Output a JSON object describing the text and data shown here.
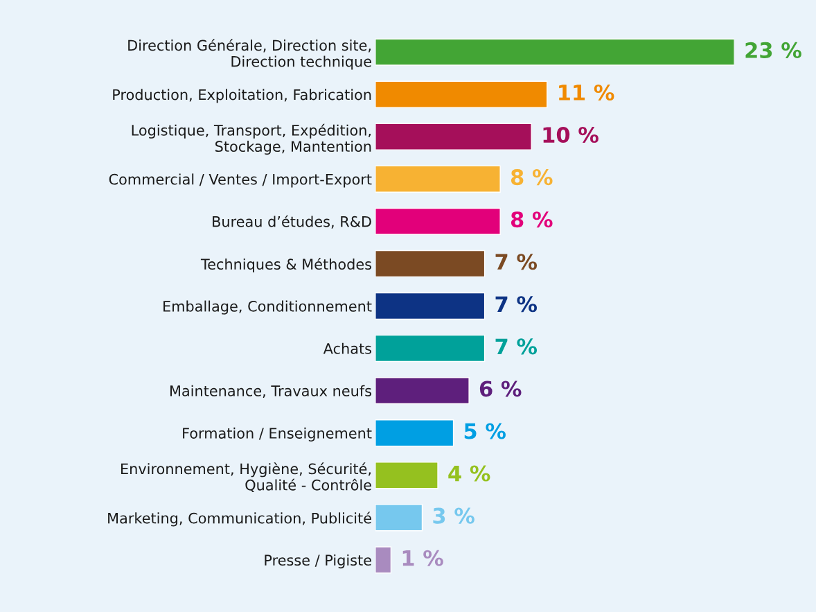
{
  "chart_data": {
    "type": "bar",
    "orientation": "horizontal",
    "categories": [
      "Direction Générale, Direction site,\nDirection technique",
      "Production, Exploitation, Fabrication",
      "Logistique, Transport, Expédition,\nStockage, Mantention",
      "Commercial / Ventes / Import-Export",
      "Bureau d’études, R&D",
      "Techniques & Méthodes",
      "Emballage, Conditionnement",
      "Achats",
      "Maintenance, Travaux neufs",
      "Formation / Enseignement",
      "Environnement, Hygiène, Sécurité,\nQualité - Contrôle",
      "Marketing, Communication, Publicité",
      "Presse / Pigiste"
    ],
    "values": [
      23,
      11,
      10,
      8,
      8,
      7,
      7,
      7,
      6,
      5,
      4,
      3,
      1
    ],
    "colors": [
      "#43a535",
      "#f08a00",
      "#a50f5a",
      "#f7b233",
      "#e2007a",
      "#7b4a23",
      "#0d3384",
      "#00a19a",
      "#5e1f7c",
      "#009fe3",
      "#95c11f",
      "#76c8ee",
      "#a98bbf"
    ],
    "value_labels": [
      "23 %",
      "11 %",
      "10 %",
      "8 %",
      "8 %",
      "7 %",
      "7 %",
      "7 %",
      "6 %",
      "5 %",
      "4 %",
      "3 %",
      "1 %"
    ],
    "tick_labels": "y",
    "grid": false,
    "legend": false
  }
}
